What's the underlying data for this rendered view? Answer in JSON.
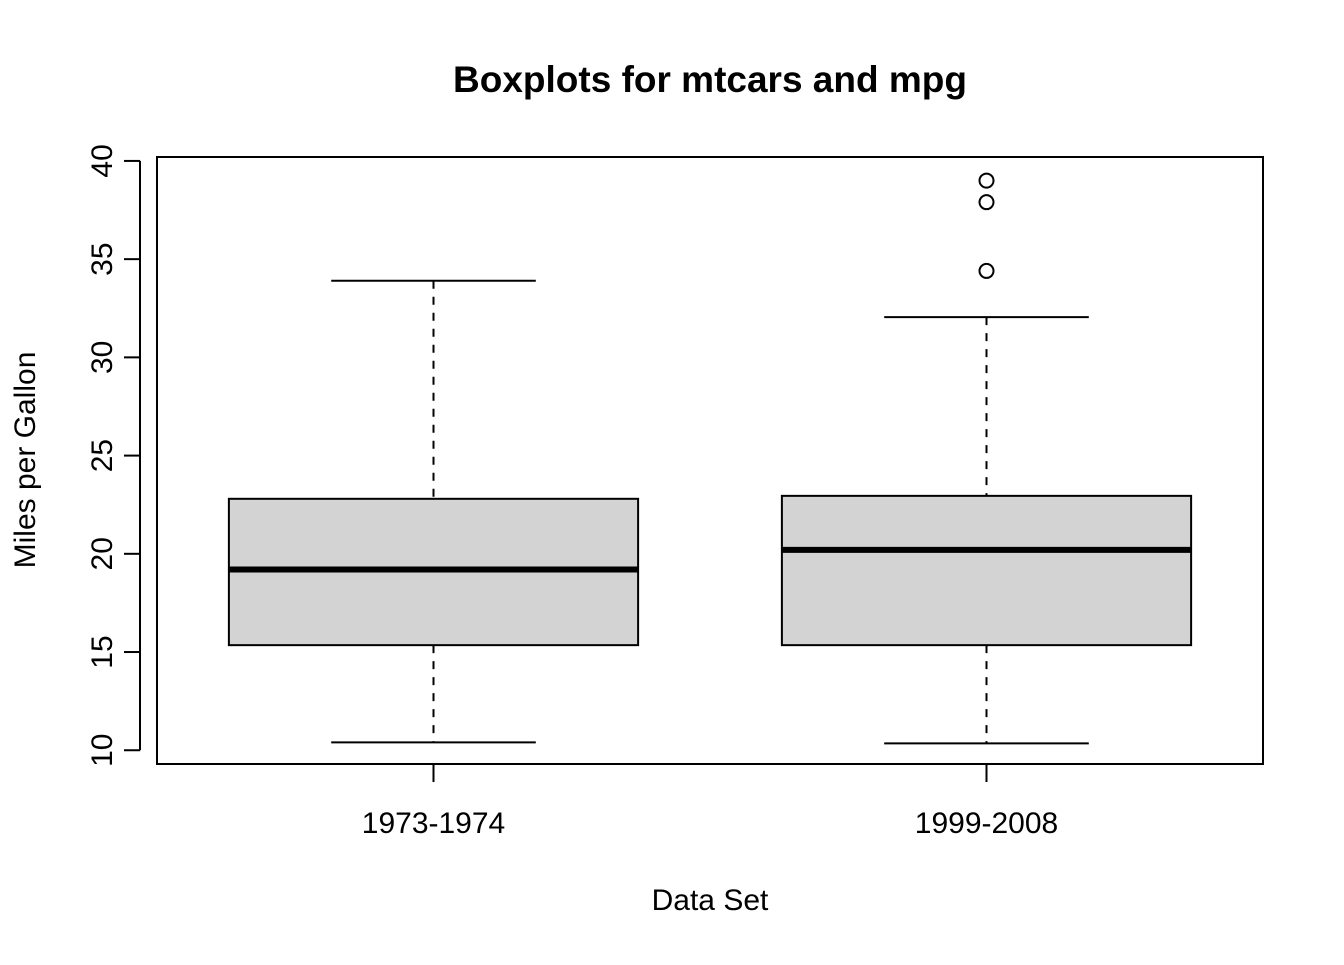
{
  "chart_data": {
    "type": "boxplot",
    "title": "Boxplots for mtcars and mpg",
    "xlabel": "Data Set",
    "ylabel": "Miles per Gallon",
    "ylim": [
      9.3,
      40.2
    ],
    "yticks": [
      10,
      15,
      20,
      25,
      30,
      35,
      40
    ],
    "grid": false,
    "legend": "none",
    "categories": [
      "1973-1974",
      "1999-2008"
    ],
    "boxes": [
      {
        "category": "1973-1974",
        "whisker_low": 10.4,
        "q1": 15.35,
        "median": 19.2,
        "q3": 22.8,
        "whisker_high": 33.9,
        "outliers": []
      },
      {
        "category": "1999-2008",
        "whisker_low": 10.35,
        "q1": 15.35,
        "median": 20.2,
        "q3": 22.95,
        "whisker_high": 32.05,
        "outliers": [
          34.4,
          37.9,
          39.0
        ]
      }
    ],
    "colors": {
      "box_fill": "#d3d3d3",
      "stroke": "#000000"
    }
  }
}
